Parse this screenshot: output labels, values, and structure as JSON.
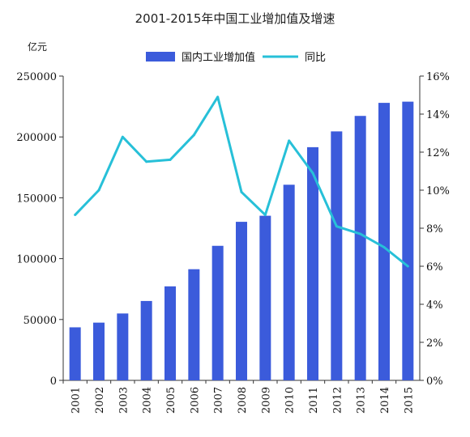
{
  "chart_data": {
    "type": "bar",
    "title": "2001-2015年中国工业增加值及增速",
    "left_unit": "亿元",
    "categories": [
      "2001",
      "2002",
      "2003",
      "2004",
      "2005",
      "2006",
      "2007",
      "2008",
      "2009",
      "2010",
      "2011",
      "2012",
      "2013",
      "2014",
      "2015"
    ],
    "series": [
      {
        "name": "国内工业增加值",
        "type": "bar",
        "axis": "left",
        "color": "#3b5bdb",
        "values": [
          43581,
          47431,
          54946,
          65210,
          77231,
          91311,
          110535,
          130260,
          135240,
          160722,
          191570,
          204540,
          217264,
          227991,
          228974
        ]
      },
      {
        "name": "同比",
        "type": "line",
        "axis": "right",
        "color": "#27c0d8",
        "values": [
          8.7,
          10.0,
          12.8,
          11.5,
          11.6,
          12.9,
          14.9,
          9.9,
          8.7,
          12.6,
          10.9,
          8.1,
          7.7,
          7.0,
          6.0
        ]
      }
    ],
    "left_axis": {
      "ylim": [
        0,
        250000
      ],
      "ticks": [
        "0",
        "50000",
        "100000",
        "150000",
        "200000",
        "250000"
      ]
    },
    "right_axis": {
      "ylim": [
        0,
        16
      ],
      "ticks": [
        "0%",
        "2%",
        "4%",
        "6%",
        "8%",
        "10%",
        "12%",
        "14%",
        "16%"
      ]
    },
    "legend_position": "top-center",
    "grid": false
  }
}
